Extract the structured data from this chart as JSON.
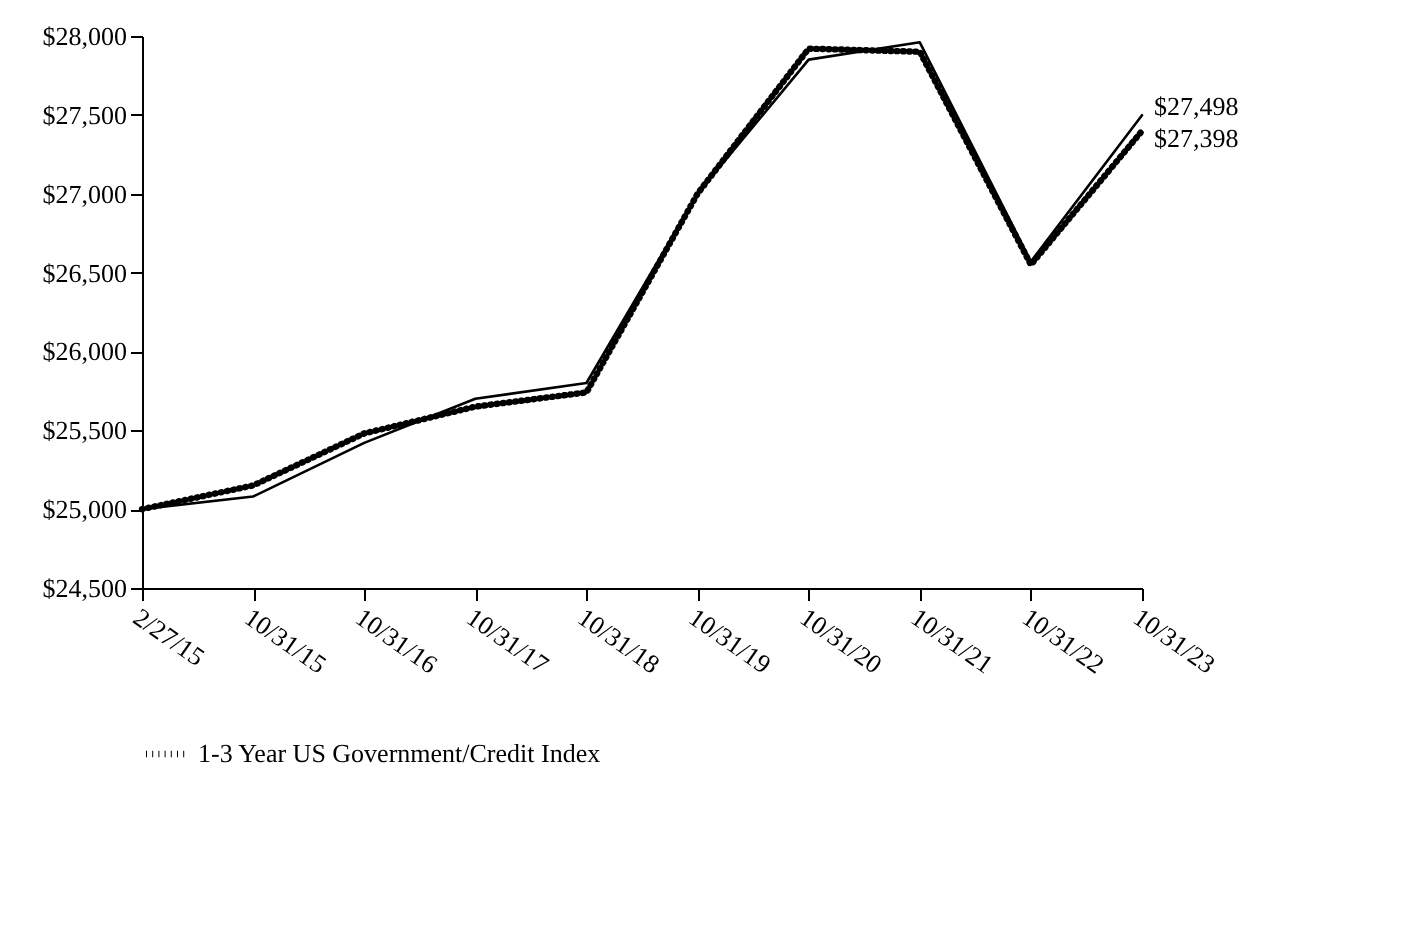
{
  "chart_data": {
    "type": "line",
    "categories": [
      "2/27/15",
      "10/31/15",
      "10/31/16",
      "10/31/17",
      "10/31/18",
      "10/31/19",
      "10/31/20",
      "10/31/21",
      "10/31/22",
      "10/31/23"
    ],
    "series": [
      {
        "color": "#000000",
        "line_style": "solid",
        "values": [
          25000,
          25080,
          25420,
          25700,
          25800,
          27000,
          27850,
          27960,
          26570,
          27498
        ]
      },
      {
        "name": "1-3 Year US Government/Credit Index",
        "color": "#000000",
        "line_style": "dotted",
        "values": [
          25000,
          25150,
          25480,
          25650,
          25740,
          27000,
          27920,
          27900,
          26550,
          27398
        ]
      }
    ],
    "ylim": [
      24500,
      28000
    ],
    "yticks": [
      {
        "value": 24500,
        "label": "$24,500"
      },
      {
        "value": 25000,
        "label": "$25,000"
      },
      {
        "value": 25500,
        "label": "$25,500"
      },
      {
        "value": 26000,
        "label": "$26,000"
      },
      {
        "value": 26500,
        "label": "$26,500"
      },
      {
        "value": 27000,
        "label": "$27,000"
      },
      {
        "value": 27500,
        "label": "$27,500"
      },
      {
        "value": 28000,
        "label": "$28,000"
      }
    ],
    "annotations": [
      {
        "text": "$27,498",
        "x": "10/31/23",
        "y": 27498
      },
      {
        "text": "$27,398",
        "x": "10/31/23",
        "y": 27398
      }
    ],
    "grid": false,
    "legend": "bottom",
    "marker": "none"
  }
}
